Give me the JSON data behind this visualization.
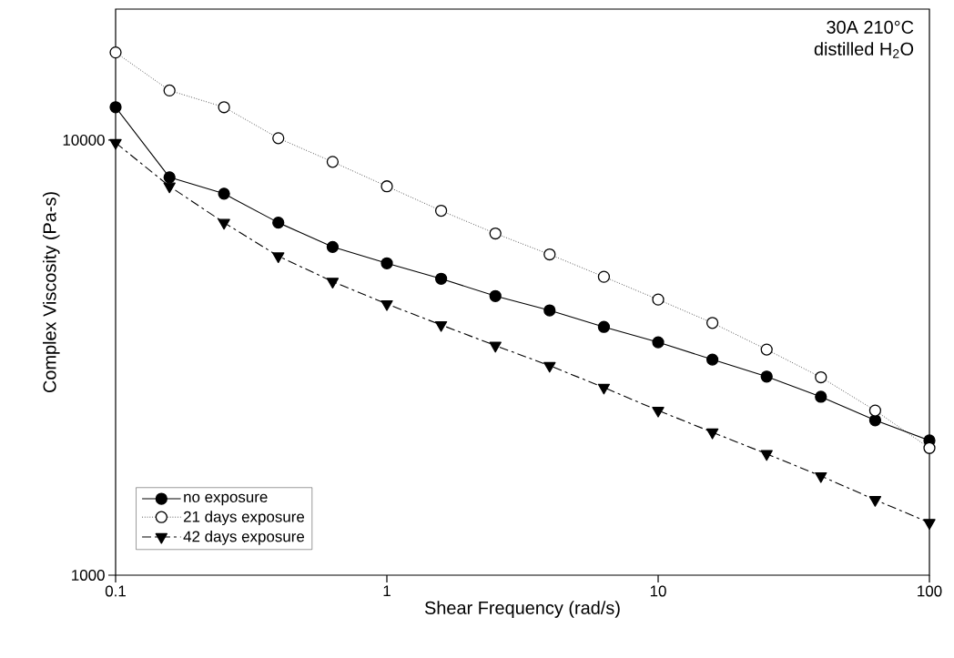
{
  "chart_data": {
    "type": "line",
    "xlabel": "Shear Frequency (rad/s)",
    "ylabel": "Complex Viscosity (Pa-s)",
    "annotations": [
      "30A 210°C",
      "distilled H$_{2}$O"
    ],
    "x": [
      0.1,
      0.158,
      0.251,
      0.398,
      0.631,
      1,
      1.585,
      2.512,
      3.981,
      6.31,
      10,
      15.85,
      25.12,
      39.81,
      63.1,
      100
    ],
    "series": [
      {
        "name": "no exposure",
        "color": "#000000",
        "marker": "circle",
        "line_style": "solid",
        "values": [
          11900,
          8210,
          7530,
          6460,
          5680,
          5210,
          4800,
          4380,
          4060,
          3720,
          3430,
          3130,
          2860,
          2570,
          2270,
          2040
        ]
      },
      {
        "name": "21 days exposure",
        "color": "#000000",
        "marker": "circle",
        "line_style": "dotted",
        "values": [
          15900,
          13000,
          11900,
          10100,
          8910,
          7830,
          6880,
          6100,
          5460,
          4850,
          4300,
          3800,
          3300,
          2850,
          2390,
          1960
        ]
      },
      {
        "name": "42 days exposure",
        "color": "#000000",
        "marker": "triangle",
        "line_style": "dashed",
        "values": [
          9860,
          7830,
          6460,
          5410,
          4730,
          4200,
          3760,
          3370,
          3030,
          2700,
          2390,
          2130,
          1900,
          1690,
          1490,
          1320
        ]
      }
    ],
    "log": "xy",
    "xlim": [
      0.1,
      100
    ],
    "ylim": [
      1000,
      20000
    ],
    "xticks": [
      0.1,
      1,
      10,
      100
    ],
    "yticks": [
      1000,
      10000
    ],
    "grid": false,
    "legend": "bottom left"
  }
}
